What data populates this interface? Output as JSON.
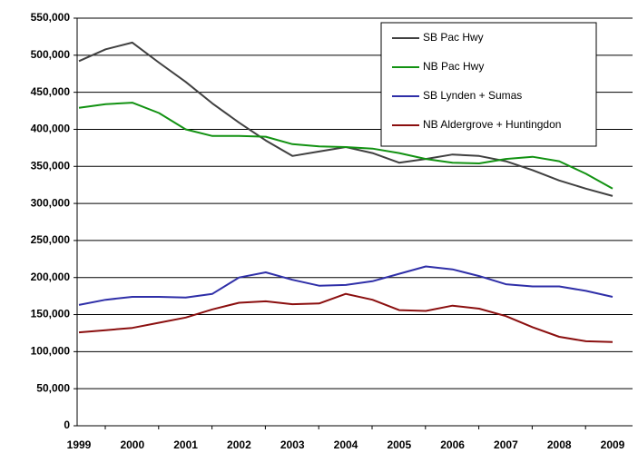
{
  "chart_data": {
    "type": "line",
    "x": [
      1999,
      1999.5,
      2000,
      2000.5,
      2001,
      2001.5,
      2002,
      2002.5,
      2003,
      2003.5,
      2004,
      2004.5,
      2005,
      2005.5,
      2006,
      2006.5,
      2007,
      2007.5,
      2008,
      2008.5,
      2009
    ],
    "xlim": [
      1999,
      2009
    ],
    "xticks": [
      1999,
      2000,
      2001,
      2002,
      2003,
      2004,
      2005,
      2006,
      2007,
      2008,
      2009
    ],
    "ylim": [
      0,
      550000
    ],
    "yticks": [
      0,
      {
        "value": 50000,
        "label": "50,000"
      },
      {
        "value": 100000,
        "label": "100,000"
      },
      {
        "value": 150000,
        "label": "150,000"
      },
      {
        "value": 200000,
        "label": "200,000"
      },
      {
        "value": 250000,
        "label": "250,000"
      },
      {
        "value": 300000,
        "label": "300,000"
      },
      {
        "value": 350000,
        "label": "350,000"
      },
      {
        "value": 400000,
        "label": "400,000"
      },
      {
        "value": 450000,
        "label": "450,000"
      },
      {
        "value": 500000,
        "label": "500,000"
      },
      {
        "value": 550000,
        "label": "550,000"
      }
    ],
    "grid": true,
    "legend": "top-right",
    "series": [
      {
        "name": "SB Pac Hwy",
        "color": "#404040",
        "values": [
          492000,
          508000,
          517000,
          490000,
          464000,
          435000,
          409000,
          385000,
          364000,
          370000,
          376000,
          368000,
          355000,
          360000,
          366000,
          364000,
          357000,
          345000,
          331000,
          320000,
          310000
        ]
      },
      {
        "name": "NB Pac Hwy",
        "color": "#129212",
        "values": [
          429000,
          434000,
          436000,
          422000,
          400000,
          391000,
          391000,
          390000,
          380000,
          377000,
          376000,
          374000,
          368000,
          360000,
          355000,
          354000,
          360000,
          363000,
          357000,
          340000,
          320000
        ]
      },
      {
        "name": "SB Lynden + Sumas",
        "color": "#2f2fa8",
        "values": [
          163000,
          170000,
          174000,
          174000,
          173000,
          178000,
          200000,
          207000,
          197000,
          189000,
          190000,
          195000,
          205000,
          215000,
          211000,
          202000,
          191000,
          188000,
          188000,
          182000,
          174000
        ]
      },
      {
        "name": "NB Aldergrove + Huntingdon",
        "color": "#8b0f0f",
        "values": [
          126000,
          129000,
          132000,
          139000,
          146000,
          157000,
          166000,
          168000,
          164000,
          165000,
          178000,
          170000,
          156000,
          155000,
          162000,
          158000,
          148000,
          133000,
          120000,
          114000,
          113000
        ]
      }
    ]
  }
}
